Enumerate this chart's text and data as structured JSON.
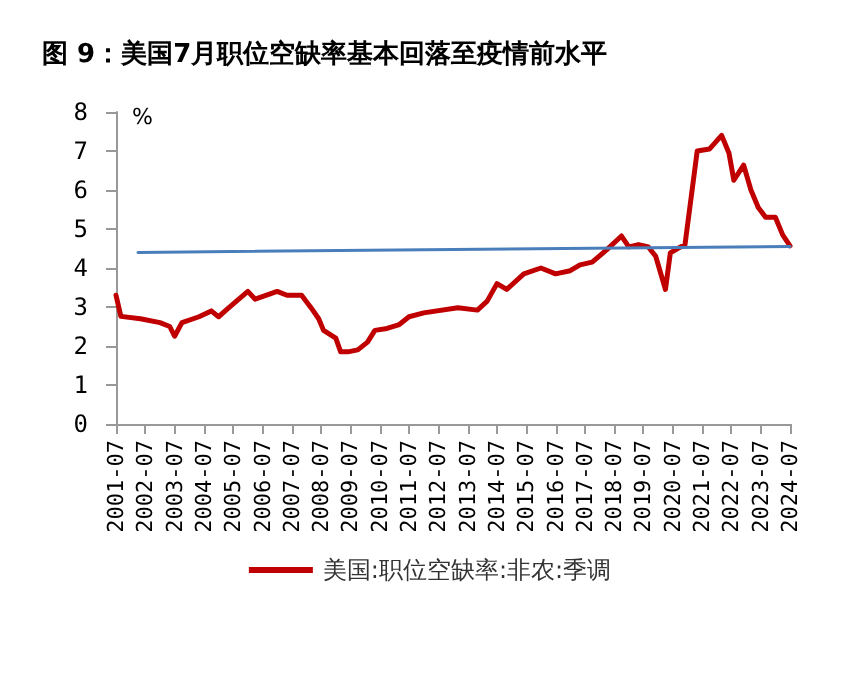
{
  "chart_data": {
    "type": "line",
    "title": "图 9：美国7月职位空缺率基本回落至疫情前水平",
    "ylabel": "%",
    "xlim": [
      "2001-07",
      "2024-07"
    ],
    "xticks": [
      "2001-07",
      "2002-07",
      "2003-07",
      "2004-07",
      "2005-07",
      "2006-07",
      "2007-07",
      "2008-07",
      "2009-07",
      "2010-07",
      "2011-07",
      "2012-07",
      "2013-07",
      "2014-07",
      "2015-07",
      "2016-07",
      "2017-07",
      "2018-07",
      "2019-07",
      "2020-07",
      "2021-07",
      "2022-07",
      "2023-07",
      "2024-07"
    ],
    "ylim": [
      0,
      8
    ],
    "yticks": [
      0,
      1,
      2,
      3,
      4,
      5,
      6,
      7,
      8
    ],
    "grid": false,
    "legend": "bottom",
    "marker": "none",
    "line_style": "solid",
    "series": [
      {
        "name": "美国:职位空缺率:非农:季调",
        "color": "#c00000",
        "x": [
          "2001-07",
          "2001-09",
          "2002-05",
          "2003-01",
          "2003-05",
          "2003-07",
          "2003-10",
          "2004-05",
          "2004-10",
          "2005-01",
          "2005-05",
          "2006-01",
          "2006-04",
          "2007-01",
          "2007-05",
          "2007-11",
          "2008-03",
          "2008-06",
          "2008-08",
          "2009-01",
          "2009-03",
          "2009-06",
          "2009-10",
          "2010-02",
          "2010-05",
          "2010-10",
          "2011-03",
          "2011-07",
          "2012-01",
          "2013-03",
          "2013-11",
          "2014-03",
          "2014-07",
          "2014-11",
          "2015-06",
          "2016-01",
          "2016-07",
          "2017-01",
          "2017-05",
          "2017-10",
          "2018-04",
          "2018-10",
          "2019-01",
          "2019-05",
          "2019-09",
          "2019-12",
          "2020-04",
          "2020-06",
          "2020-09",
          "2020-12",
          "2021-05",
          "2021-10",
          "2022-03",
          "2022-06",
          "2022-08",
          "2022-12",
          "2023-03",
          "2023-06",
          "2023-09",
          "2024-01",
          "2024-04",
          "2024-07"
        ],
        "values": [
          3.3,
          2.76,
          2.7,
          2.6,
          2.5,
          2.25,
          2.6,
          2.75,
          2.9,
          2.75,
          2.97,
          3.4,
          3.2,
          3.4,
          3.3,
          3.3,
          2.97,
          2.7,
          2.4,
          2.2,
          1.85,
          1.85,
          1.9,
          2.1,
          2.4,
          2.45,
          2.55,
          2.75,
          2.85,
          2.98,
          2.92,
          3.15,
          3.6,
          3.45,
          3.85,
          4.0,
          3.85,
          3.93,
          4.08,
          4.15,
          4.47,
          4.82,
          4.54,
          4.6,
          4.54,
          4.3,
          3.45,
          4.39,
          4.5,
          4.6,
          7.0,
          7.05,
          7.4,
          6.95,
          6.25,
          6.64,
          6.0,
          5.55,
          5.3,
          5.3,
          4.85,
          4.57
        ]
      },
      {
        "color": "#4a7ebb",
        "x": [
          "2002-04",
          "2024-07"
        ],
        "values": [
          4.4,
          4.55
        ]
      }
    ]
  }
}
